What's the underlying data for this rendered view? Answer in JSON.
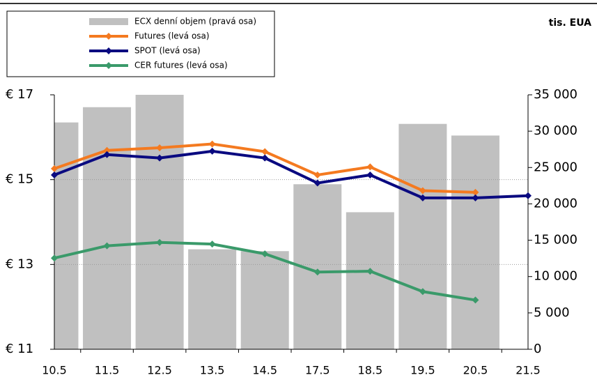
{
  "chart_data": {
    "type": "bar-line",
    "unit_label": "tis. EUA",
    "categories": [
      "10.5",
      "11.5",
      "12.5",
      "13.5",
      "14.5",
      "17.5",
      "18.5",
      "19.5",
      "20.5",
      "21.5"
    ],
    "series": [
      {
        "name": "ECX denní objem (pravá osa)",
        "type": "bar",
        "axis": "y2",
        "color": "#c0c0c0",
        "values": [
          31200,
          33300,
          35000,
          13750,
          13500,
          22700,
          18850,
          31000,
          29400,
          null
        ]
      },
      {
        "name": "Futures (levá osa)",
        "type": "line",
        "color": "#f47a20",
        "values": [
          15.26,
          15.69,
          15.75,
          15.84,
          15.66,
          15.11,
          15.3,
          14.74,
          14.7,
          null
        ]
      },
      {
        "name": "SPOT (levá osa)",
        "type": "line",
        "color": "#0a0a80",
        "values": [
          15.11,
          15.59,
          15.51,
          15.67,
          15.51,
          14.92,
          15.11,
          14.57,
          14.57,
          14.62
        ]
      },
      {
        "name": "CER futures (levá osa)",
        "type": "line",
        "color": "#3a9a6a",
        "values": [
          13.15,
          13.44,
          13.52,
          13.48,
          13.25,
          12.82,
          12.84,
          12.36,
          12.16,
          null
        ]
      }
    ],
    "ylim": [
      11,
      17
    ],
    "yticks": [
      {
        "value": 11,
        "label": "€ 11"
      },
      {
        "value": 13,
        "label": "€ 13"
      },
      {
        "value": 15,
        "label": "€ 15"
      },
      {
        "value": 17,
        "label": "€ 17"
      }
    ],
    "y2lim": [
      0,
      35000
    ],
    "y2ticks": [
      0,
      {
        "value": 5000,
        "label": "5 000"
      },
      {
        "value": 10000,
        "label": "10 000"
      },
      {
        "value": 15000,
        "label": "15 000"
      },
      {
        "value": 20000,
        "label": "20 000"
      },
      {
        "value": 25000,
        "label": "25 000"
      },
      {
        "value": 30000,
        "label": "30 000"
      },
      {
        "value": 35000,
        "label": "35 000"
      }
    ],
    "grid": true
  }
}
